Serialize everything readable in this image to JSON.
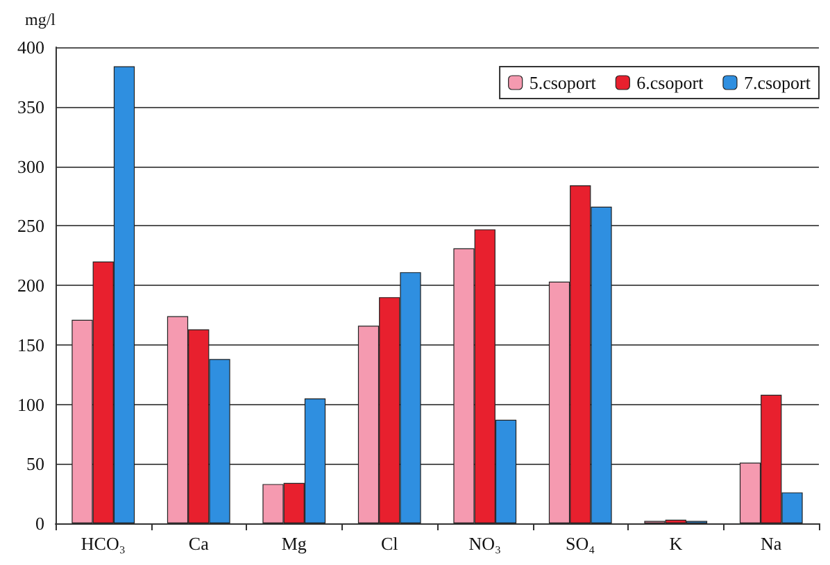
{
  "chart_data": {
    "type": "bar",
    "ylabel": "mg/l",
    "categories": [
      "HCO₃",
      "Ca",
      "Mg",
      "Cl",
      "NO₃",
      "SO₄",
      "K",
      "Na"
    ],
    "series": [
      {
        "name": "5.csoport",
        "color": "#f59ab0",
        "values": [
          171,
          174,
          33,
          166,
          231,
          203,
          2,
          51
        ]
      },
      {
        "name": "6.csoport",
        "color": "#e8202e",
        "values": [
          220,
          163,
          34,
          190,
          247,
          284,
          3,
          108
        ]
      },
      {
        "name": "7.csoport",
        "color": "#2f8fe0",
        "values": [
          384,
          138,
          105,
          211,
          87,
          266,
          2,
          26
        ]
      }
    ],
    "ylim": [
      0,
      400
    ],
    "yticks": [
      0,
      50,
      100,
      150,
      200,
      250,
      300,
      350,
      400
    ],
    "grid": "y",
    "legend": "top right"
  }
}
